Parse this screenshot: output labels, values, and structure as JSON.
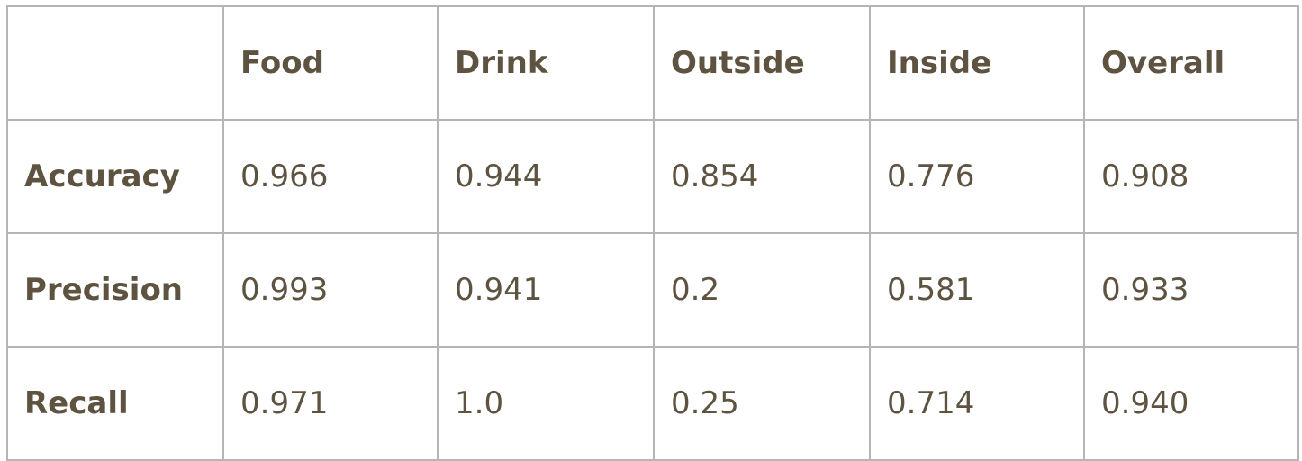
{
  "table": {
    "corner": "",
    "columns": [
      "Food",
      "Drink",
      "Outside",
      "Inside",
      "Overall"
    ],
    "rows": [
      {
        "label": "Accuracy",
        "values": [
          "0.966",
          "0.944",
          "0.854",
          "0.776",
          "0.908"
        ]
      },
      {
        "label": "Precision",
        "values": [
          "0.993",
          "0.941",
          "0.2",
          "0.581",
          "0.933"
        ]
      },
      {
        "label": "Recall",
        "values": [
          "0.971",
          "1.0",
          "0.25",
          "0.714",
          "0.940"
        ]
      }
    ]
  },
  "colors": {
    "text": "#5e5340",
    "border": "#b5b5b5"
  }
}
